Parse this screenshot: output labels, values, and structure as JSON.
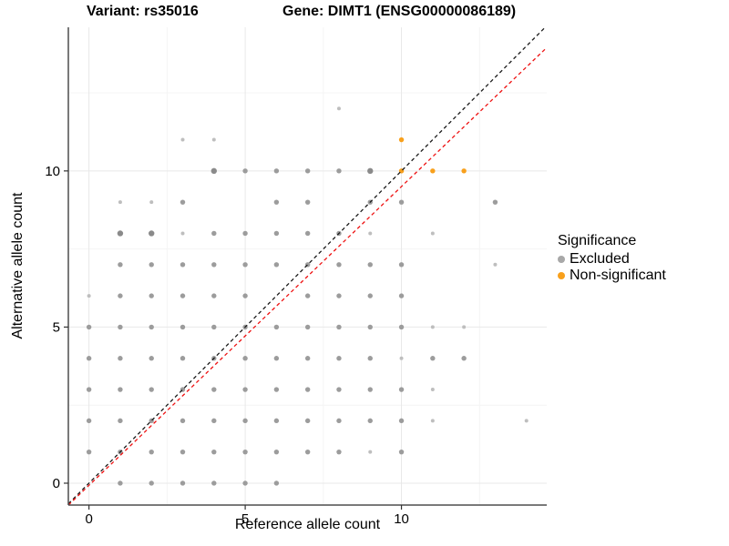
{
  "header": {
    "variant": "Variant: rs35016",
    "gene": "Gene: DIMT1 (ENSG00000086189)"
  },
  "axes": {
    "x_label": "Reference allele count",
    "y_label": "Alternative allele count"
  },
  "legend": {
    "title": "Significance",
    "items": [
      {
        "label": "Excluded",
        "color": "#A8A8A8"
      },
      {
        "label": "Non-significant",
        "color": "#F8A01C"
      }
    ]
  },
  "colors": {
    "excluded_small": "#BEBEBE",
    "excluded_medium": "#9C9C9C",
    "excluded_large": "#8A8A8A",
    "non_significant": "#F8A01C",
    "identity_line": "#1A1A1A",
    "fit_line": "#EE1111",
    "grid_major": "#E8E8E8",
    "grid_minor": "#F4F4F4",
    "axis_line": "#4D4D4D",
    "tick_text": "#333333"
  },
  "chart_data": {
    "type": "scatter",
    "title": "Variant: rs35016 | Gene: DIMT1 (ENSG00000086189)",
    "xlabel": "Reference allele count",
    "ylabel": "Alternative allele count",
    "xlim": [
      -0.66,
      14.65
    ],
    "ylim": [
      -0.7,
      14.6
    ],
    "x_ticks": [
      0,
      5,
      10
    ],
    "y_ticks": [
      0,
      5,
      10
    ],
    "x_minor": [
      2.5,
      7.5,
      12.5
    ],
    "y_minor": [
      2.5,
      7.5,
      12.5
    ],
    "grid": true,
    "legend_position": "right",
    "point_note": "points are [x, y, sizeClass]; sizeClass 1=small/light 2=medium 3=large/dark",
    "series": [
      {
        "name": "Excluded",
        "color": "#9C9C9C",
        "points": [
          [
            1,
            0,
            2
          ],
          [
            2,
            0,
            2
          ],
          [
            3,
            0,
            2
          ],
          [
            4,
            0,
            2
          ],
          [
            5,
            0,
            2
          ],
          [
            6,
            0,
            2
          ],
          [
            0,
            1,
            2
          ],
          [
            1,
            1,
            2
          ],
          [
            2,
            1,
            2
          ],
          [
            3,
            1,
            2
          ],
          [
            4,
            1,
            2
          ],
          [
            5,
            1,
            2
          ],
          [
            6,
            1,
            2
          ],
          [
            7,
            1,
            2
          ],
          [
            8,
            1,
            2
          ],
          [
            9,
            1,
            1
          ],
          [
            10,
            1,
            2
          ],
          [
            0,
            2,
            2
          ],
          [
            1,
            2,
            2
          ],
          [
            2,
            2,
            2
          ],
          [
            3,
            2,
            2
          ],
          [
            4,
            2,
            2
          ],
          [
            5,
            2,
            2
          ],
          [
            6,
            2,
            2
          ],
          [
            7,
            2,
            2
          ],
          [
            8,
            2,
            2
          ],
          [
            9,
            2,
            2
          ],
          [
            10,
            2,
            2
          ],
          [
            11,
            2,
            1
          ],
          [
            14,
            2,
            1
          ],
          [
            0,
            3,
            2
          ],
          [
            1,
            3,
            2
          ],
          [
            2,
            3,
            2
          ],
          [
            3,
            3,
            2
          ],
          [
            4,
            3,
            2
          ],
          [
            5,
            3,
            2
          ],
          [
            6,
            3,
            2
          ],
          [
            7,
            3,
            2
          ],
          [
            8,
            3,
            2
          ],
          [
            9,
            3,
            2
          ],
          [
            10,
            3,
            2
          ],
          [
            11,
            3,
            1
          ],
          [
            0,
            4,
            2
          ],
          [
            1,
            4,
            2
          ],
          [
            2,
            4,
            2
          ],
          [
            3,
            4,
            2
          ],
          [
            4,
            4,
            2
          ],
          [
            5,
            4,
            2
          ],
          [
            6,
            4,
            2
          ],
          [
            7,
            4,
            2
          ],
          [
            8,
            4,
            2
          ],
          [
            9,
            4,
            2
          ],
          [
            10,
            4,
            1
          ],
          [
            11,
            4,
            2
          ],
          [
            12,
            4,
            2
          ],
          [
            0,
            5,
            2
          ],
          [
            1,
            5,
            2
          ],
          [
            2,
            5,
            2
          ],
          [
            3,
            5,
            2
          ],
          [
            4,
            5,
            2
          ],
          [
            5,
            5,
            2
          ],
          [
            6,
            5,
            2
          ],
          [
            7,
            5,
            2
          ],
          [
            8,
            5,
            2
          ],
          [
            9,
            5,
            2
          ],
          [
            10,
            5,
            2
          ],
          [
            11,
            5,
            1
          ],
          [
            12,
            5,
            1
          ],
          [
            0,
            6,
            1
          ],
          [
            1,
            6,
            2
          ],
          [
            2,
            6,
            2
          ],
          [
            3,
            6,
            2
          ],
          [
            4,
            6,
            2
          ],
          [
            5,
            6,
            2
          ],
          [
            7,
            6,
            2
          ],
          [
            8,
            6,
            2
          ],
          [
            9,
            6,
            2
          ],
          [
            10,
            6,
            2
          ],
          [
            1,
            7,
            2
          ],
          [
            2,
            7,
            2
          ],
          [
            3,
            7,
            2
          ],
          [
            4,
            7,
            2
          ],
          [
            5,
            7,
            2
          ],
          [
            6,
            7,
            2
          ],
          [
            7,
            7,
            2
          ],
          [
            8,
            7,
            2
          ],
          [
            9,
            7,
            2
          ],
          [
            10,
            7,
            2
          ],
          [
            13,
            7,
            1
          ],
          [
            1,
            8,
            3
          ],
          [
            2,
            8,
            3
          ],
          [
            3,
            8,
            1
          ],
          [
            4,
            8,
            2
          ],
          [
            5,
            8,
            2
          ],
          [
            6,
            8,
            2
          ],
          [
            7,
            8,
            2
          ],
          [
            8,
            8,
            2
          ],
          [
            9,
            8,
            1
          ],
          [
            11,
            8,
            1
          ],
          [
            1,
            9,
            1
          ],
          [
            2,
            9,
            1
          ],
          [
            3,
            9,
            2
          ],
          [
            6,
            9,
            2
          ],
          [
            7,
            9,
            2
          ],
          [
            9,
            9,
            2
          ],
          [
            10,
            9,
            2
          ],
          [
            13,
            9,
            2
          ],
          [
            4,
            10,
            3
          ],
          [
            5,
            10,
            2
          ],
          [
            6,
            10,
            2
          ],
          [
            7,
            10,
            2
          ],
          [
            8,
            10,
            2
          ],
          [
            9,
            10,
            3
          ],
          [
            3,
            11,
            1
          ],
          [
            4,
            11,
            1
          ],
          [
            8,
            12,
            1
          ]
        ]
      },
      {
        "name": "Non-significant",
        "color": "#F8A01C",
        "points": [
          [
            10,
            10,
            2
          ],
          [
            11,
            10,
            2
          ],
          [
            12,
            10,
            2
          ],
          [
            10,
            11,
            2
          ]
        ]
      }
    ],
    "lines": [
      {
        "name": "identity",
        "color": "#1A1A1A",
        "style": "dashed",
        "x1": -0.66,
        "y1": -0.66,
        "x2": 14.6,
        "y2": 14.6
      },
      {
        "name": "fit",
        "color": "#EE1111",
        "style": "dashed",
        "x1": -0.66,
        "y1": -0.7,
        "x2": 14.65,
        "y2": 13.95
      }
    ]
  }
}
